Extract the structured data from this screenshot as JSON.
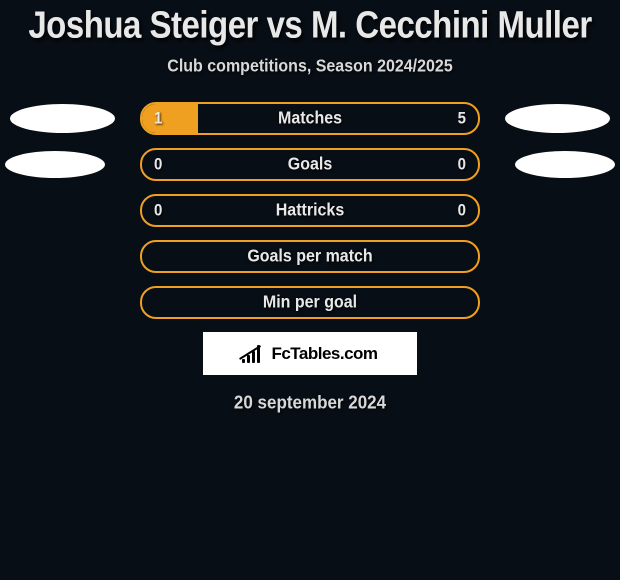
{
  "title": "Joshua Steiger vs M. Cecchini Muller",
  "subtitle": "Club competitions, Season 2024/2025",
  "date": "20 september 2024",
  "logo": {
    "brand_a": "Fc",
    "brand_b": "Tables",
    "brand_c": ".com"
  },
  "colors": {
    "background": "#080e15",
    "bar_border": "#f0a020",
    "bar_fill": "#f0a020",
    "text": "#e8e8e8",
    "avatar": "#ffffff",
    "logo_bg": "#ffffff",
    "logo_fg": "#000000"
  },
  "stats": [
    {
      "label": "Matches",
      "left_val": "1",
      "right_val": "5",
      "left_pct": 16.7,
      "right_pct": 0,
      "show_avatar": true,
      "avatar_small": false
    },
    {
      "label": "Goals",
      "left_val": "0",
      "right_val": "0",
      "left_pct": 0,
      "right_pct": 0,
      "show_avatar": true,
      "avatar_small": true
    },
    {
      "label": "Hattricks",
      "left_val": "0",
      "right_val": "0",
      "left_pct": 0,
      "right_pct": 0,
      "show_avatar": false,
      "avatar_small": false
    },
    {
      "label": "Goals per match",
      "left_val": "",
      "right_val": "",
      "left_pct": 0,
      "right_pct": 0,
      "show_avatar": false,
      "avatar_small": false
    },
    {
      "label": "Min per goal",
      "left_val": "",
      "right_val": "",
      "left_pct": 0,
      "right_pct": 0,
      "show_avatar": false,
      "avatar_small": false
    }
  ]
}
